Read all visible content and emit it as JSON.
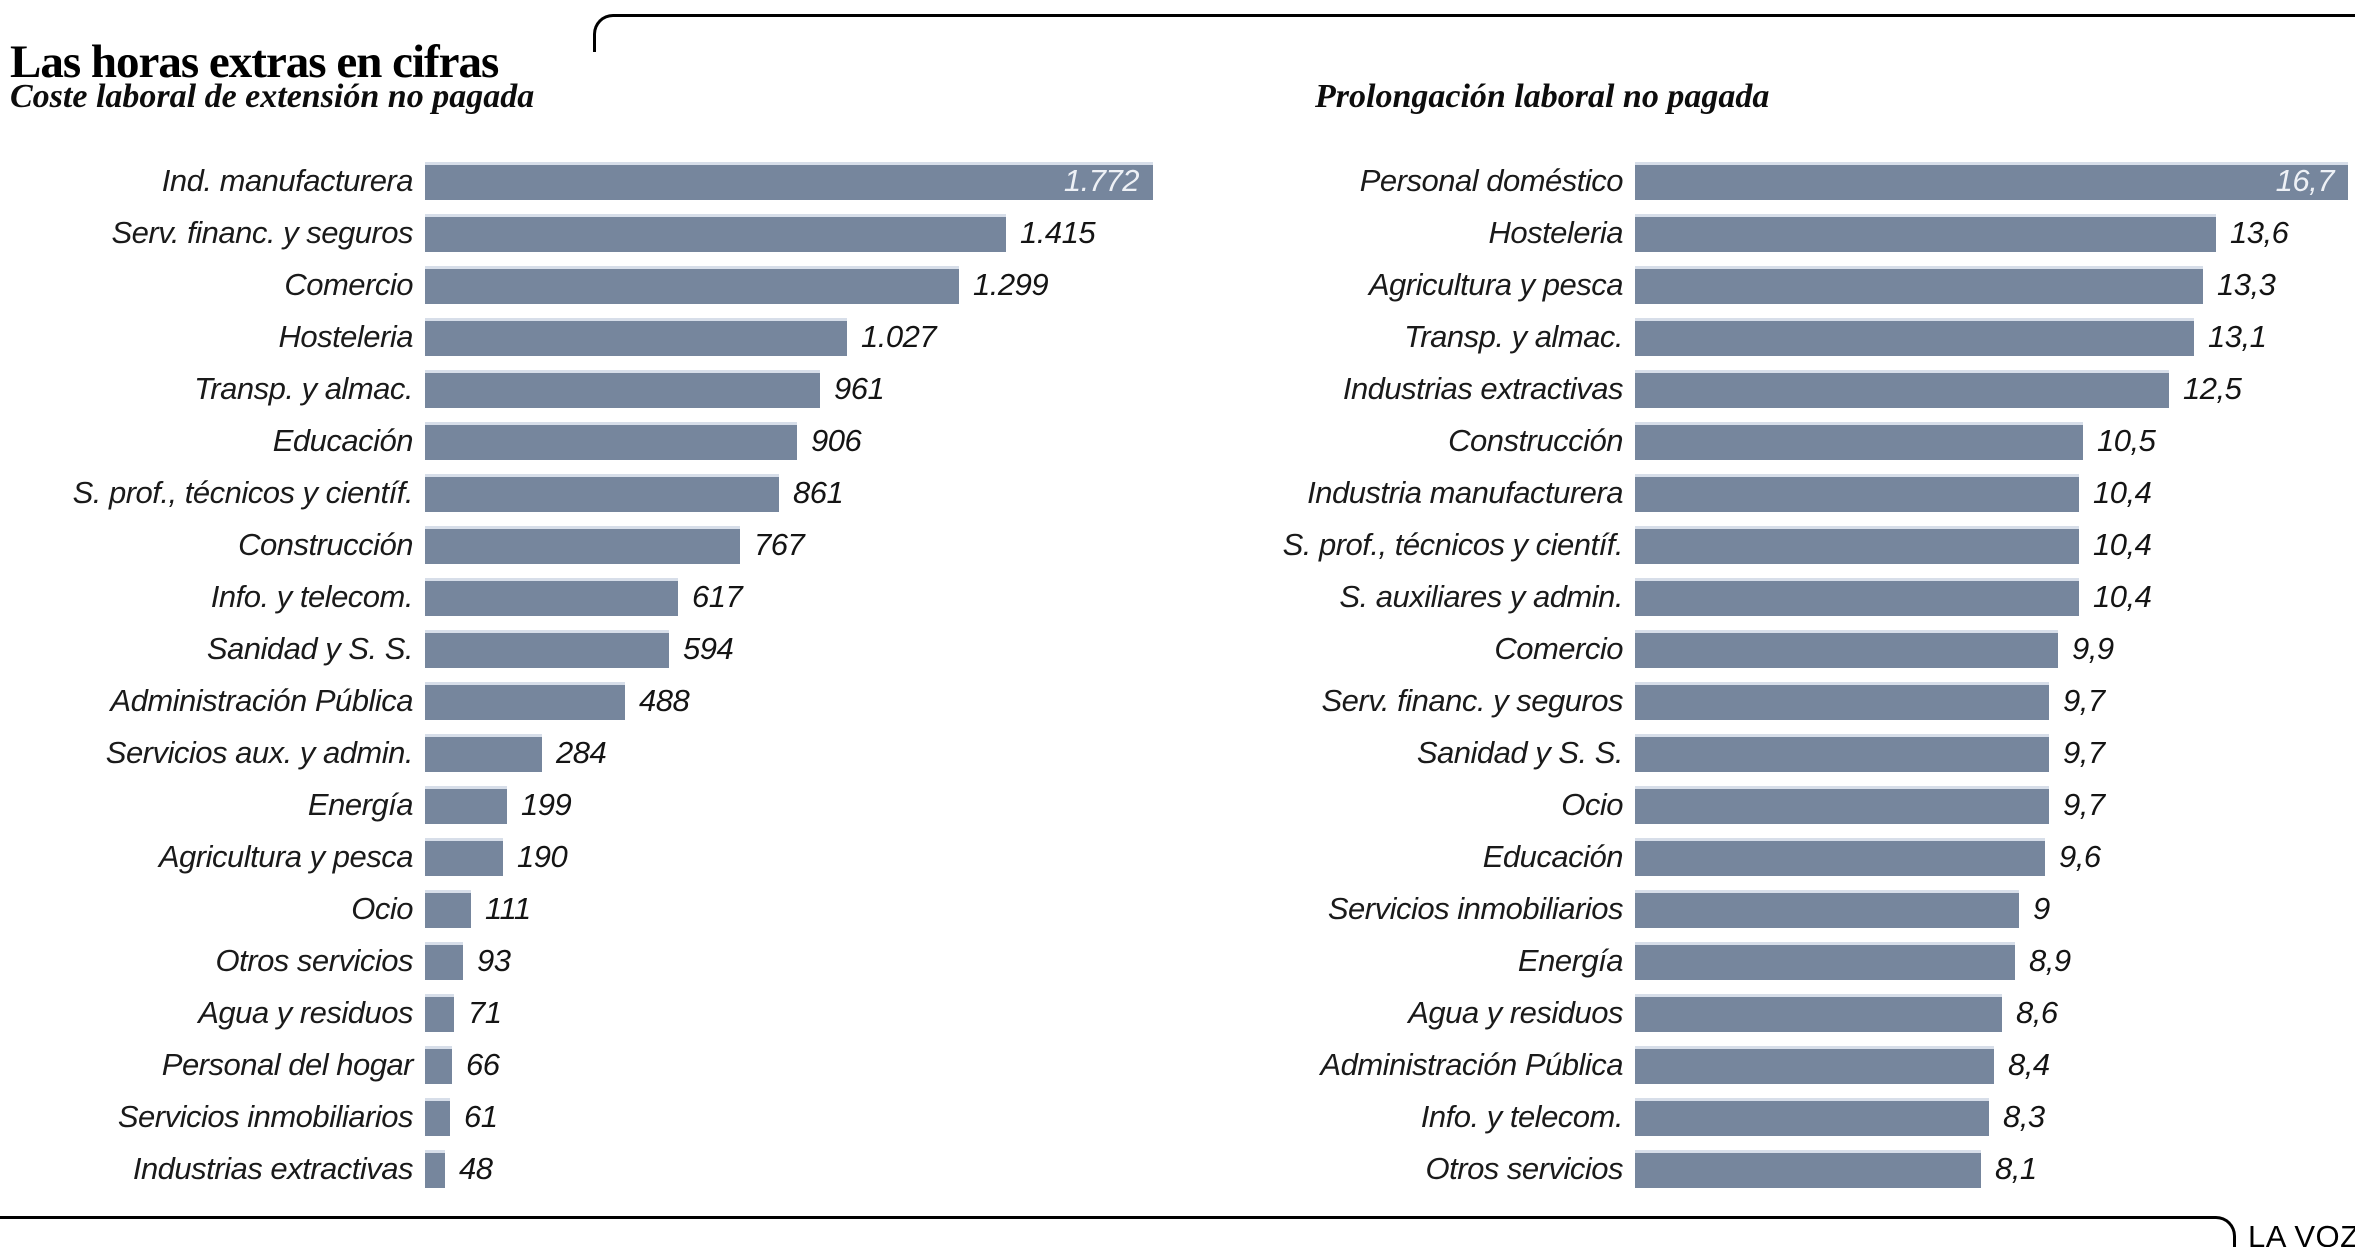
{
  "header": {
    "title": "Las horas extras en cifras"
  },
  "footer": {
    "credit": "LA VOZ"
  },
  "colors": {
    "bar_fill": "#76869d",
    "bar_top_edge": "#d7dee9",
    "rule": "#000000",
    "label_text": "#1a1a1a",
    "value_text": "#141414",
    "value_text_inside": "#eef1f6",
    "background": "#ffffff"
  },
  "chart_data": [
    {
      "type": "bar",
      "orientation": "horizontal",
      "title": "Coste laboral de extensión no pagada",
      "categories": [
        "Ind. manufacturera",
        "Serv. financ. y seguros",
        "Comercio",
        "Hosteleria",
        "Transp. y almac.",
        "Educación",
        "S. prof., técnicos y científ.",
        "Construcción",
        "Info. y telecom.",
        "Sanidad y S. S.",
        "Administración Pública",
        "Servicios aux. y admin.",
        "Energía",
        "Agricultura y pesca",
        "Ocio",
        "Otros servicios",
        "Agua y residuos",
        "Personal del hogar",
        "Servicios inmobiliarios",
        "Industrias extractivas"
      ],
      "values": [
        1772,
        1415,
        1299,
        1027,
        961,
        906,
        861,
        767,
        617,
        594,
        488,
        284,
        199,
        190,
        111,
        93,
        71,
        66,
        61,
        48
      ],
      "value_labels": [
        "1.772",
        "1.415",
        "1.299",
        "1.027",
        "961",
        "906",
        "861",
        "767",
        "617",
        "594",
        "488",
        "284",
        "199",
        "190",
        "111",
        "93",
        "71",
        "66",
        "61",
        "48"
      ],
      "xlim": [
        0,
        1772
      ],
      "grid": false,
      "legend": "none",
      "first_value_inside_bar": true
    },
    {
      "type": "bar",
      "orientation": "horizontal",
      "title": "Prolongación laboral no pagada",
      "categories": [
        "Personal doméstico",
        "Hosteleria",
        "Agricultura y pesca",
        "Transp. y almac.",
        "Industrias extractivas",
        "Construcción",
        "Industria manufacturera",
        "S. prof., técnicos y científ.",
        "S. auxiliares y admin.",
        "Comercio",
        "Serv. financ. y seguros",
        "Sanidad y S. S.",
        "Ocio",
        "Educación",
        "Servicios inmobiliarios",
        "Energía",
        "Agua y residuos",
        "Administración Pública",
        "Info. y telecom.",
        "Otros servicios"
      ],
      "values": [
        16.7,
        13.6,
        13.3,
        13.1,
        12.5,
        10.5,
        10.4,
        10.4,
        10.4,
        9.9,
        9.7,
        9.7,
        9.7,
        9.6,
        9,
        8.9,
        8.6,
        8.4,
        8.3,
        8.1
      ],
      "value_labels": [
        "16,7",
        "13,6",
        "13,3",
        "13,1",
        "12,5",
        "10,5",
        "10,4",
        "10,4",
        "10,4",
        "9,9",
        "9,7",
        "9,7",
        "9,7",
        "9,6",
        "9",
        "8,9",
        "8,6",
        "8,4",
        "8,3",
        "8,1"
      ],
      "xlim": [
        0,
        16.7
      ],
      "grid": false,
      "legend": "none",
      "first_value_inside_bar": true
    }
  ]
}
